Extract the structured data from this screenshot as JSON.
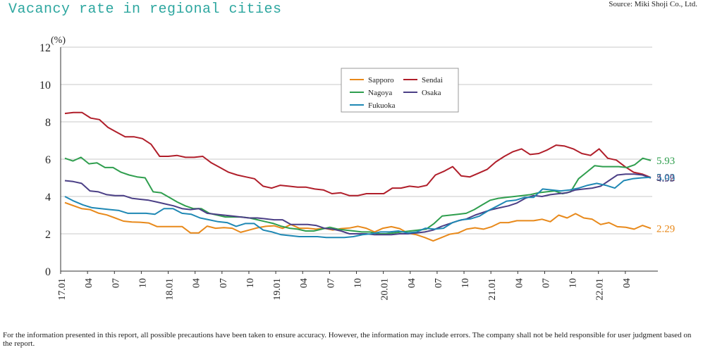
{
  "header": {
    "title": "Vacancy rate in regional cities",
    "source": "Source: Miki Shoji Co., Ltd."
  },
  "footnote": "For the information presented in this report, all possible precautions have been taken to ensure accuracy. However, the information may include errors. The company shall not be held responsible for user judgment based on the report.",
  "chart_data": {
    "type": "line",
    "title": "Vacancy rate in regional cities",
    "ylabel": "(%)",
    "ylim": [
      0,
      12
    ],
    "yticks": [
      "0",
      "2",
      "4",
      "6",
      "8",
      "10",
      "12"
    ],
    "xticks": [
      "17.01",
      "04",
      "07",
      "10",
      "18.01",
      "04",
      "07",
      "10",
      "19.01",
      "04",
      "07",
      "10",
      "20.01",
      "04",
      "07",
      "10",
      "21.01",
      "04",
      "07",
      "10",
      "22.01",
      "04"
    ],
    "grid": true,
    "legend_position": "top-center",
    "series": [
      {
        "name": "Sapporo",
        "color": "#e8891a",
        "end_label": "2.29",
        "values": [
          3.67,
          3.51,
          3.35,
          3.3,
          3.11,
          3.01,
          2.85,
          2.68,
          2.63,
          2.62,
          2.58,
          2.39,
          2.39,
          2.39,
          2.39,
          2.05,
          2.05,
          2.41,
          2.3,
          2.33,
          2.3,
          2.08,
          2.2,
          2.32,
          2.4,
          2.43,
          2.29,
          2.5,
          2.3,
          2.3,
          2.25,
          2.3,
          2.2,
          2.28,
          2.31,
          2.4,
          2.3,
          2.1,
          2.3,
          2.38,
          2.28,
          2.03,
          1.95,
          1.8,
          1.62,
          1.8,
          1.98,
          2.05,
          2.25,
          2.32,
          2.25,
          2.38,
          2.6,
          2.6,
          2.7,
          2.7,
          2.7,
          2.78,
          2.65,
          3.0,
          2.85,
          3.08,
          2.85,
          2.78,
          2.5,
          2.6,
          2.38,
          2.35,
          2.25,
          2.45,
          2.29
        ]
      },
      {
        "name": "Sendai",
        "color": "#b01e2a",
        "end_label": "5.02",
        "values": [
          8.45,
          8.5,
          8.5,
          8.2,
          8.12,
          7.7,
          7.45,
          7.2,
          7.2,
          7.1,
          6.8,
          6.15,
          6.15,
          6.2,
          6.1,
          6.1,
          6.15,
          5.8,
          5.55,
          5.3,
          5.15,
          5.05,
          4.95,
          4.55,
          4.45,
          4.6,
          4.55,
          4.5,
          4.5,
          4.4,
          4.35,
          4.15,
          4.2,
          4.05,
          4.05,
          4.15,
          4.15,
          4.15,
          4.45,
          4.45,
          4.55,
          4.5,
          4.6,
          5.15,
          5.35,
          5.6,
          5.1,
          5.05,
          5.25,
          5.45,
          5.85,
          6.15,
          6.4,
          6.55,
          6.25,
          6.3,
          6.5,
          6.75,
          6.7,
          6.55,
          6.3,
          6.2,
          6.55,
          6.05,
          5.95,
          5.6,
          5.3,
          5.2,
          5.02
        ]
      },
      {
        "name": "Nagoya",
        "color": "#2f9e4e",
        "end_label": "5.93",
        "values": [
          6.05,
          5.9,
          6.1,
          5.75,
          5.8,
          5.55,
          5.55,
          5.3,
          5.15,
          5.05,
          5.0,
          4.25,
          4.2,
          3.95,
          3.7,
          3.5,
          3.35,
          3.35,
          3.1,
          3.0,
          2.9,
          2.9,
          2.9,
          2.85,
          2.75,
          2.65,
          2.55,
          2.4,
          2.3,
          2.25,
          2.15,
          2.15,
          2.25,
          2.35,
          2.25,
          2.2,
          2.15,
          2.1,
          2.1,
          2.0,
          2.0,
          2.05,
          2.1,
          2.15,
          2.2,
          2.25,
          2.55,
          2.95,
          3.0,
          3.05,
          3.1,
          3.3,
          3.55,
          3.8,
          3.9,
          3.95,
          4.0,
          4.05,
          4.1,
          4.2,
          4.25,
          4.3,
          4.15,
          4.25,
          4.95,
          5.3,
          5.65,
          5.6,
          5.6,
          5.6,
          5.55,
          5.7,
          6.05,
          5.93
        ]
      },
      {
        "name": "Osaka",
        "color": "#4b3f86",
        "end_label": "4.99",
        "values": [
          4.85,
          4.8,
          4.7,
          4.3,
          4.25,
          4.1,
          4.05,
          4.05,
          3.9,
          3.85,
          3.8,
          3.7,
          3.6,
          3.5,
          3.35,
          3.3,
          3.35,
          3.1,
          3.05,
          3.0,
          2.95,
          2.9,
          2.85,
          2.85,
          2.8,
          2.75,
          2.75,
          2.5,
          2.5,
          2.5,
          2.45,
          2.3,
          2.25,
          2.15,
          2.0,
          2.0,
          2.0,
          1.95,
          1.95,
          1.95,
          2.0,
          2.0,
          2.05,
          2.1,
          2.2,
          2.4,
          2.55,
          2.7,
          2.8,
          3.0,
          3.15,
          3.3,
          3.4,
          3.5,
          3.65,
          3.9,
          4.05,
          4.0,
          4.1,
          4.15,
          4.2,
          4.35,
          4.4,
          4.45,
          4.55,
          4.85,
          5.15,
          5.2,
          5.2,
          5.15,
          4.99
        ]
      },
      {
        "name": "Fukuoka",
        "color": "#1f88b4",
        "end_label": "5.03",
        "values": [
          4.0,
          3.75,
          3.55,
          3.4,
          3.35,
          3.3,
          3.25,
          3.1,
          3.1,
          3.1,
          3.05,
          3.35,
          3.35,
          3.1,
          3.05,
          2.85,
          2.75,
          2.65,
          2.6,
          2.4,
          2.55,
          2.55,
          2.2,
          2.1,
          1.95,
          1.9,
          1.85,
          1.85,
          1.85,
          1.8,
          1.8,
          1.8,
          1.85,
          1.95,
          2.0,
          2.1,
          2.1,
          2.15,
          2.05,
          2.1,
          2.3,
          2.25,
          2.3,
          2.6,
          2.75,
          2.8,
          2.95,
          3.25,
          3.5,
          3.75,
          3.8,
          3.95,
          3.95,
          4.4,
          4.35,
          4.3,
          4.35,
          4.45,
          4.6,
          4.7,
          4.6,
          4.45,
          4.85,
          4.95,
          5.0,
          5.03
        ]
      }
    ]
  }
}
